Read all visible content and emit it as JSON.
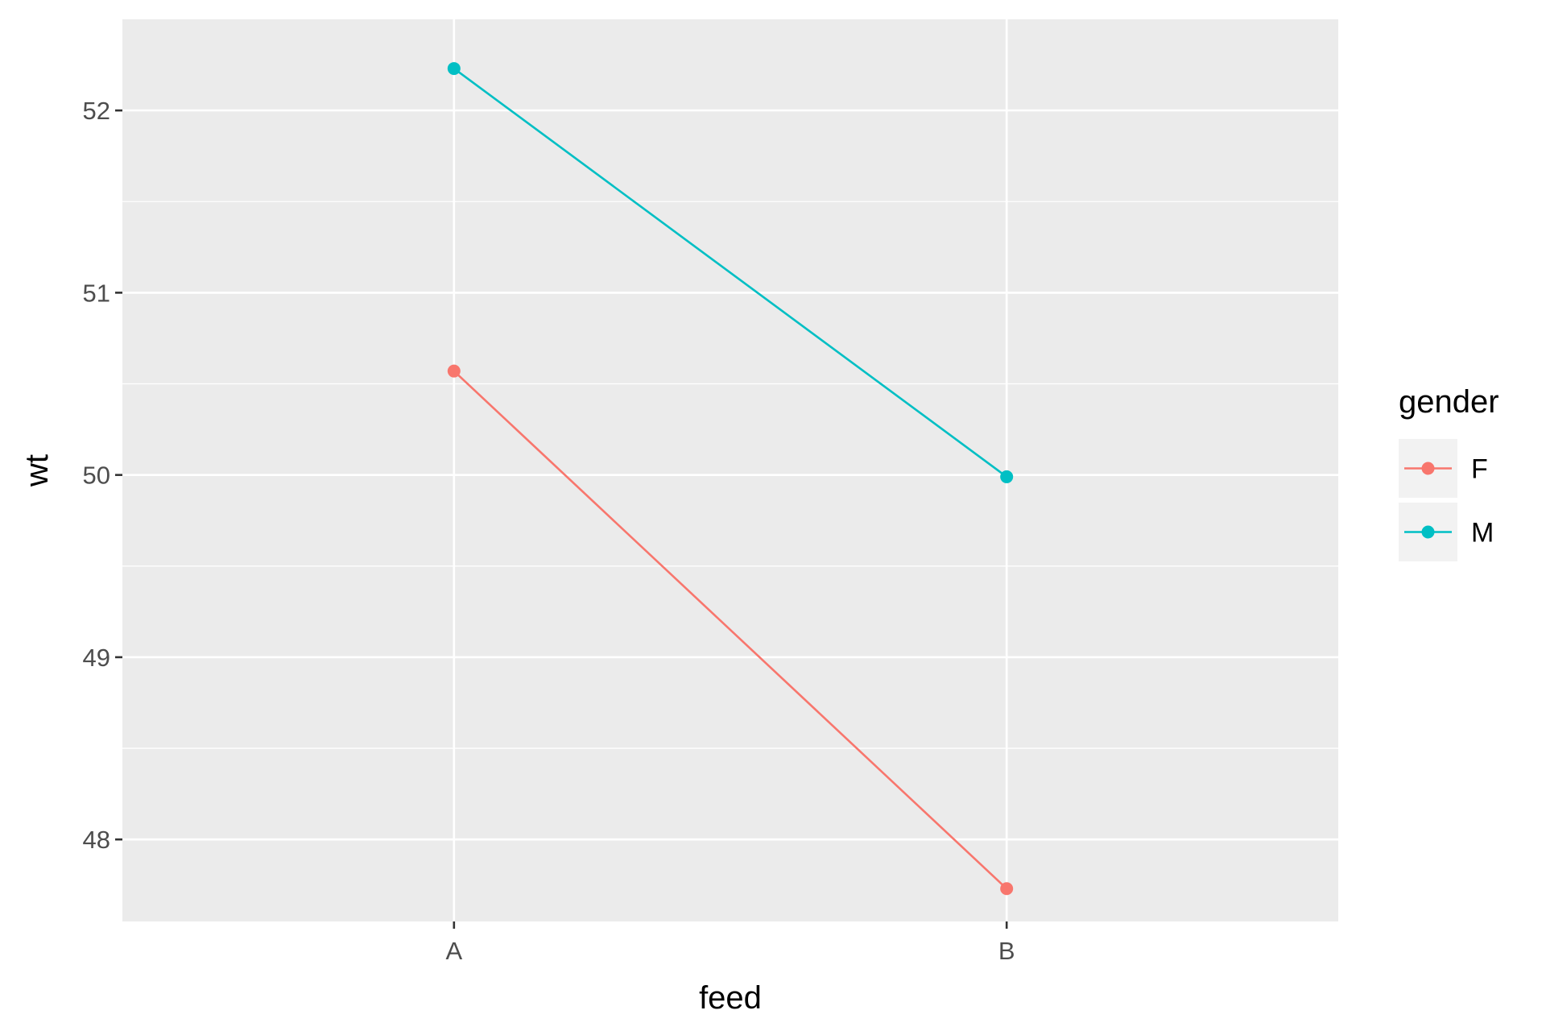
{
  "chart_data": {
    "type": "line",
    "title": "",
    "xlabel": "feed",
    "ylabel": "wt",
    "categories": [
      "A",
      "B"
    ],
    "y_ticks": [
      48,
      49,
      50,
      51,
      52
    ],
    "ylim": [
      47.55,
      52.5
    ],
    "grid": true,
    "legend": {
      "title": "gender",
      "placement": "right"
    },
    "series": [
      {
        "name": "F",
        "color": "#F8766D",
        "values": [
          50.57,
          47.73
        ]
      },
      {
        "name": "M",
        "color": "#00BFC4",
        "values": [
          52.23,
          49.99
        ]
      }
    ]
  },
  "colors": {
    "panel_background": "#EBEBEB",
    "grid_line": "#FFFFFF"
  }
}
